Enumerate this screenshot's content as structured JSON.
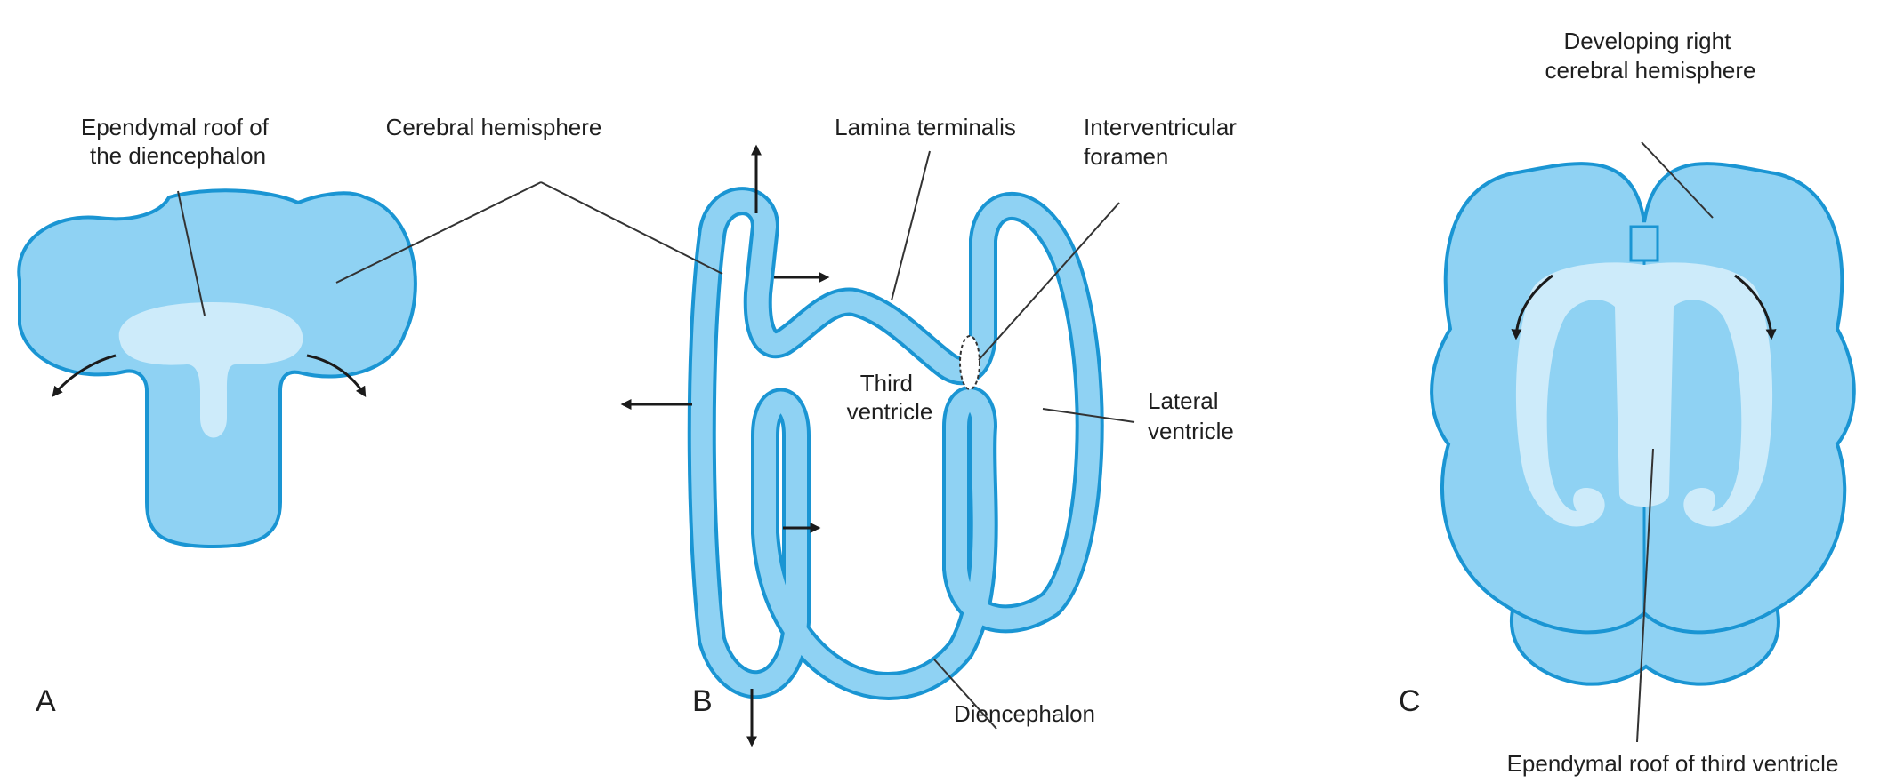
{
  "colors": {
    "tissue_fill": "#8fd2f3",
    "tissue_outline": "#1a95d3",
    "ependymal_fill": "#cdebfa",
    "text": "#1f1f1f"
  },
  "panel_a": {
    "letter": "A",
    "label_ependymal_roof": [
      "Ependymal roof of",
      "the diencephalon"
    ],
    "label_cerebral_hemisphere": "Cerebral hemisphere"
  },
  "panel_b": {
    "letter": "B",
    "label_lamina_terminalis": "Lamina terminalis",
    "label_interventricular_foramen": [
      "Interventricular",
      "foramen"
    ],
    "label_third_ventricle": [
      "Third",
      "ventricle"
    ],
    "label_lateral_ventricle": [
      "Lateral",
      "ventricle"
    ],
    "label_diencephalon": "Diencephalon"
  },
  "panel_c": {
    "letter": "C",
    "label_developing_hemisphere": [
      "Developing right",
      "cerebral hemisphere"
    ],
    "label_ependymal_roof_third_ventricle": "Ependymal roof of third ventricle"
  },
  "caption": ""
}
